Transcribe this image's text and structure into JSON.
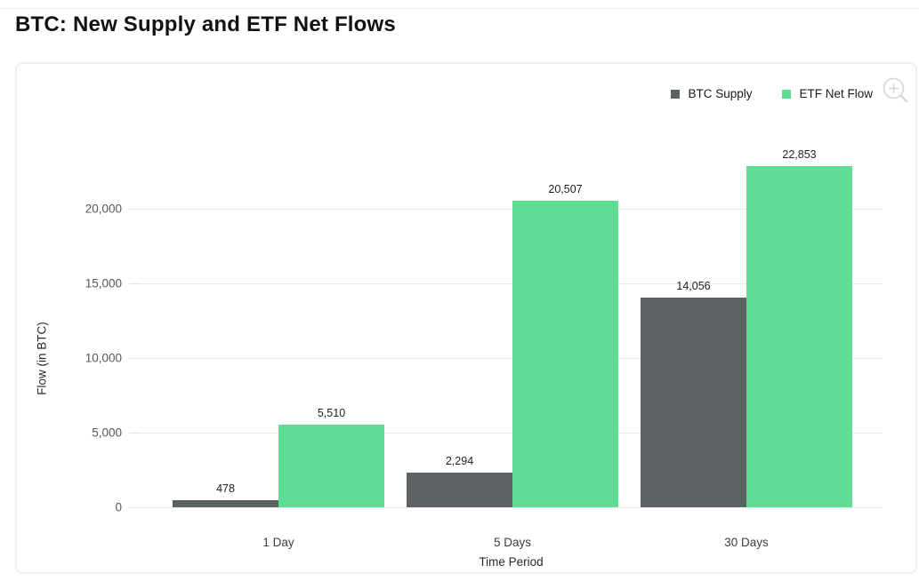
{
  "page": {
    "title": "BTC: New Supply and ETF Net Flows"
  },
  "legend": [
    {
      "label": "BTC Supply",
      "color": "#5c6164"
    },
    {
      "label": "ETF Net Flow",
      "color": "#5ede94"
    }
  ],
  "toolbar": {
    "zoom_icon": "zoom-in-magnifier",
    "icon_color": "#d8d8d8"
  },
  "chart_data": {
    "type": "bar",
    "title": "BTC: New Supply and ETF Net Flows",
    "categories": [
      "1 Day",
      "5 Days",
      "30 Days"
    ],
    "series": [
      {
        "name": "BTC Supply",
        "color": "#5c6164",
        "values": [
          478,
          2294,
          14056
        ]
      },
      {
        "name": "ETF Net Flow",
        "color": "#5ede94",
        "values": [
          5510,
          20507,
          22853
        ]
      }
    ],
    "xlabel": "Time Period",
    "ylabel": "Flow (in BTC)",
    "yticks": [
      0,
      5000,
      10000,
      15000,
      20000
    ],
    "ylim": [
      0,
      24000
    ],
    "grid": true,
    "legend_position": "top-right",
    "value_labels_shown": true
  }
}
